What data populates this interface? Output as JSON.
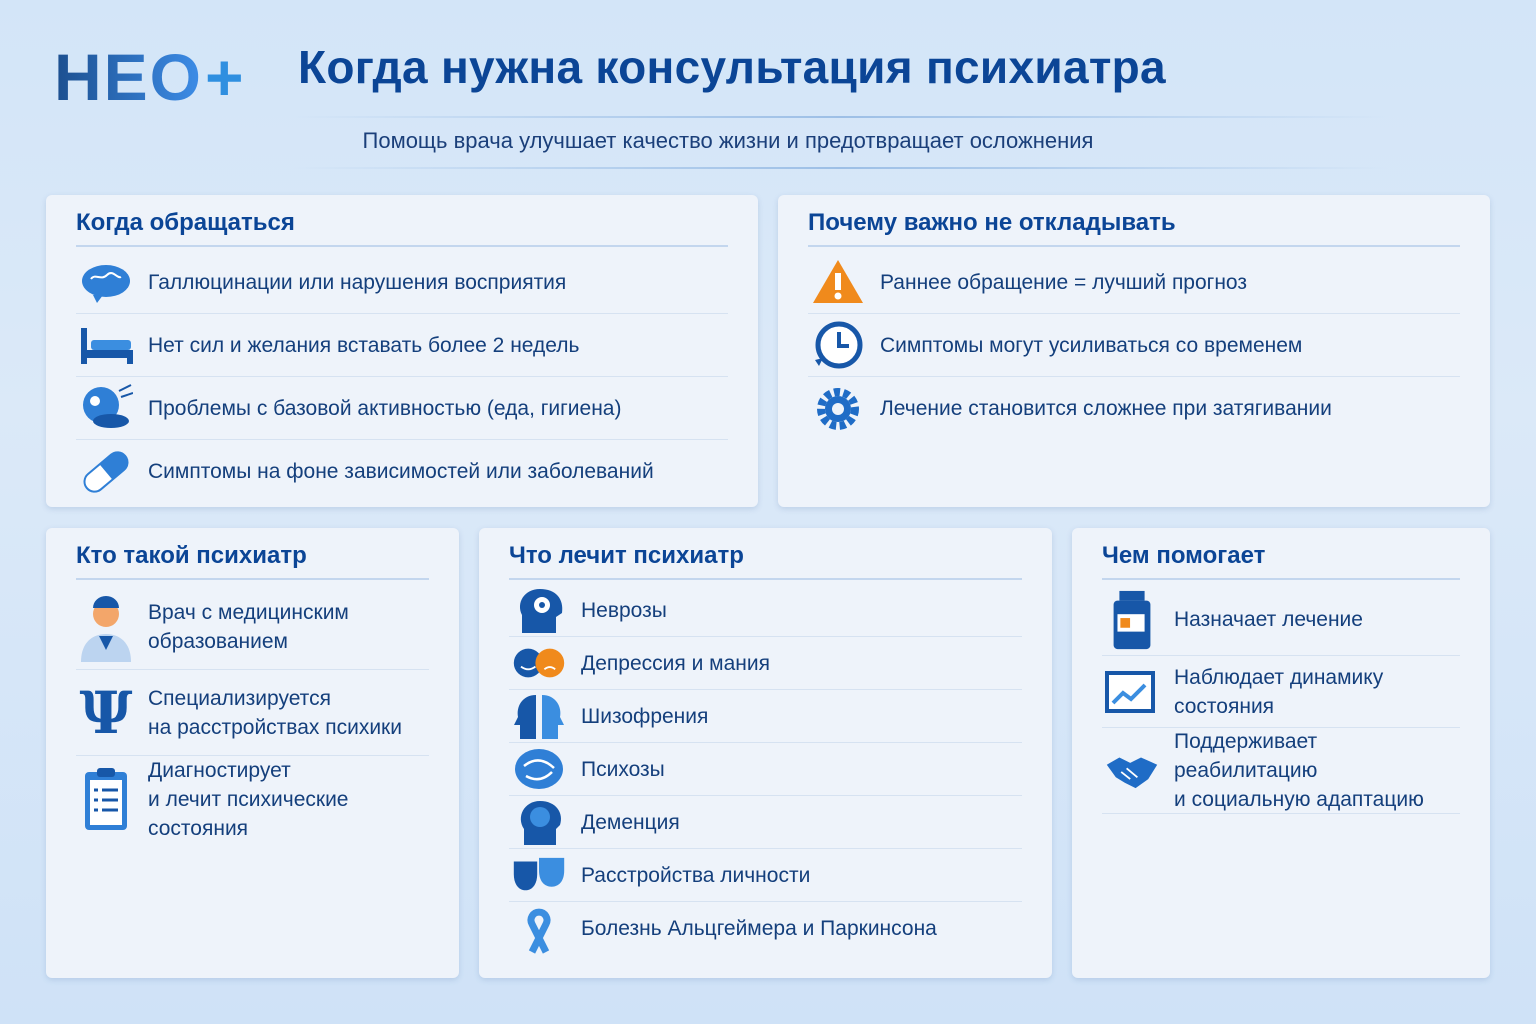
{
  "logo": {
    "text": "НЕО",
    "plus": "+"
  },
  "header": {
    "title": "Когда нужна консультация психиатра",
    "subtitle": "Помощь врача улучшает качество жизни и предотвращает осложнения"
  },
  "colors": {
    "primary": "#0b4596",
    "accent": "#2f8fe0",
    "warning": "#f08a1c",
    "background": "#d3e5f8"
  },
  "when": {
    "title": "Когда обращаться",
    "items": [
      {
        "icon": "brain-icon",
        "text": "Галлюцинации или нарушения восприятия"
      },
      {
        "icon": "bed-icon",
        "text": "Нет сил и желания вставать более 2 недель"
      },
      {
        "icon": "hygiene-icon",
        "text": "Проблемы с базовой активностью (еда, гигиена)"
      },
      {
        "icon": "pill-icon",
        "text": "Симптомы на фоне зависимостей или заболеваний"
      }
    ]
  },
  "why": {
    "title": "Почему важно не откладывать",
    "items": [
      {
        "icon": "warning-icon",
        "text": "Раннее обращение = лучший прогноз"
      },
      {
        "icon": "clock-icon",
        "text": "Симптомы могут усиливаться со временем"
      },
      {
        "icon": "gear-icon",
        "text": "Лечение становится сложнее при затягивании"
      }
    ]
  },
  "who": {
    "title": "Кто такой психиатр",
    "items": [
      {
        "icon": "doctor-icon",
        "line1": "Врач с медицинским",
        "line2": "образованием"
      },
      {
        "icon": "psi-icon",
        "line1": "Специализируется",
        "line2": "на расстройствах психики"
      },
      {
        "icon": "clipboard-icon",
        "line1": "Диагностирует",
        "line2": "и лечит психические состояния"
      }
    ]
  },
  "treats": {
    "title": "Что лечит психиатр",
    "items": [
      {
        "icon": "head-gear-icon",
        "text": "Неврозы"
      },
      {
        "icon": "mood-faces-icon",
        "text": "Депрессия и мания"
      },
      {
        "icon": "split-head-icon",
        "text": "Шизофрения"
      },
      {
        "icon": "psychosis-icon",
        "text": "Психозы"
      },
      {
        "icon": "dementia-icon",
        "text": "Деменция"
      },
      {
        "icon": "masks-icon",
        "text": "Расстройства личности"
      },
      {
        "icon": "ribbon-icon",
        "text": "Болезнь Альцгеймера и Паркинсона"
      }
    ]
  },
  "helps": {
    "title": "Чем помогает",
    "items": [
      {
        "icon": "medicine-bottle-icon",
        "line1": "Назначает лечение",
        "line2": ""
      },
      {
        "icon": "chart-icon",
        "line1": "Наблюдает динамику состояния",
        "line2": ""
      },
      {
        "icon": "handshake-icon",
        "line1": "Поддерживает реабилитацию",
        "line2": "и социальную адаптацию"
      }
    ]
  }
}
